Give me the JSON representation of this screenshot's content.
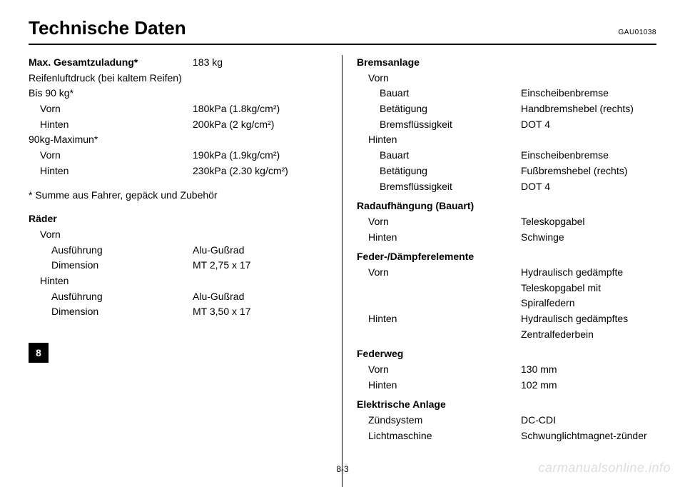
{
  "header": {
    "title": "Technische Daten",
    "code": "GAU01038"
  },
  "left": {
    "maxLoad": {
      "label": "Max. Gesamtzuladung*",
      "value": "183 kg"
    },
    "tirePressureTitle": "Reifenluftdruck (bei kaltem Reifen)",
    "upTo90": "Bis 90 kg*",
    "front1": {
      "label": "Vorn",
      "value": "180kPa (1.8kg/cm²)"
    },
    "rear1": {
      "label": "Hinten",
      "value": "200kPa (2 kg/cm²)"
    },
    "max90": "90kg-Maximun*",
    "front2": {
      "label": "Vorn",
      "value": "190kPa (1.9kg/cm²)"
    },
    "rear2": {
      "label": "Hinten",
      "value": "230kPa (2.30 kg/cm²)"
    },
    "footnote": "* Summe aus Fahrer, gepäck und Zubehör",
    "wheels": "Räder",
    "wheelsFront": "Vorn",
    "wfType": {
      "label": "Ausführung",
      "value": "Alu-Gußrad"
    },
    "wfDim": {
      "label": "Dimension",
      "value": "MT 2,75 x 17"
    },
    "wheelsRear": "Hinten",
    "wrType": {
      "label": "Ausführung",
      "value": "Alu-Gußrad"
    },
    "wrDim": {
      "label": "Dimension",
      "value": "MT 3,50 x 17"
    }
  },
  "right": {
    "brakeTitle": "Bremsanlage",
    "brakeFront": "Vorn",
    "bfType": {
      "label": "Bauart",
      "value": "Einscheibenbremse"
    },
    "bfAct": {
      "label": "Betätigung",
      "value": "Handbremshebel (rechts)"
    },
    "bfFluid": {
      "label": "Bremsflüssigkeit",
      "value": "DOT 4"
    },
    "brakeRear": "Hinten",
    "brType": {
      "label": "Bauart",
      "value": "Einscheibenbremse"
    },
    "brAct": {
      "label": "Betätigung",
      "value": "Fußbremshebel (rechts)"
    },
    "brFluid": {
      "label": "Bremsflüssigkeit",
      "value": "DOT 4"
    },
    "suspTitle": "Radaufhängung (Bauart)",
    "suspFront": {
      "label": "Vorn",
      "value": "Teleskopgabel"
    },
    "suspRear": {
      "label": "Hinten",
      "value": "Schwinge"
    },
    "dampTitle": "Feder-/Dämpferelemente",
    "dampFront": {
      "label": "Vorn",
      "value": "Hydraulisch gedämpfte Teleskopgabel mit Spiralfedern"
    },
    "dampRear": {
      "label": "Hinten",
      "value": "Hydraulisch gedämpftes Zentralfederbein"
    },
    "travelTitle": "Federweg",
    "travelFront": {
      "label": "Vorn",
      "value": "130 mm"
    },
    "travelRear": {
      "label": "Hinten",
      "value": "102 mm"
    },
    "elecTitle": "Elektrische Anlage",
    "elecIgn": {
      "label": "Zündsystem",
      "value": "DC-CDI"
    },
    "elecGen": {
      "label": "Lichtmaschine",
      "value": "Schwunglichtmagnet-zünder"
    }
  },
  "tab": "8",
  "pagenum": "8-3",
  "watermark": "carmanualsonline.info",
  "colors": {
    "text": "#000000",
    "bg": "#ffffff",
    "wm": "#dddddd"
  }
}
